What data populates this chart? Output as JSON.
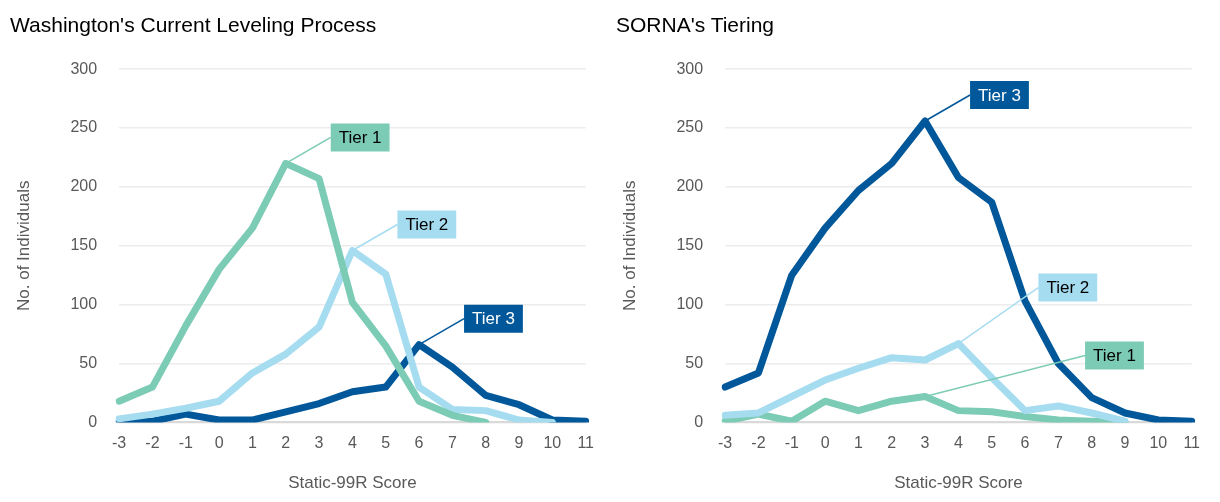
{
  "chart_data": [
    {
      "type": "line",
      "title": "Washington's Current Leveling Process",
      "xlabel": "Static-99R Score",
      "ylabel": "No. of Individuals",
      "categories": [
        "-3",
        "-2",
        "-1",
        "0",
        "1",
        "2",
        "3",
        "4",
        "5",
        "6",
        "7",
        "8",
        "9",
        "10",
        "11"
      ],
      "series": [
        {
          "name": "Tier 1",
          "color": "#7ccbb5",
          "values": [
            18,
            30,
            82,
            130,
            165,
            220,
            207,
            102,
            65,
            18,
            6,
            0,
            null,
            null,
            null
          ]
        },
        {
          "name": "Tier 2",
          "color": "#a6dcf0",
          "values": [
            3,
            7,
            12,
            18,
            42,
            58,
            81,
            146,
            126,
            30,
            11,
            10,
            2,
            0,
            null
          ]
        },
        {
          "name": "Tier 3",
          "color": "#00579a",
          "values": [
            1,
            1,
            7,
            2,
            2,
            9,
            16,
            26,
            30,
            66,
            47,
            23,
            15,
            2,
            1
          ]
        }
      ],
      "ylim": [
        0,
        300
      ],
      "yticks": [
        0,
        50,
        100,
        150,
        200,
        250,
        300
      ],
      "grid": "y",
      "legend": "top right",
      "marker": "none",
      "line_style": "solid"
    },
    {
      "type": "line",
      "title": "SORNA's Tiering",
      "xlabel": "Static-99R Score",
      "ylabel": "No. of Individuals",
      "categories": [
        "-3",
        "-2",
        "-1",
        "0",
        "1",
        "2",
        "3",
        "4",
        "5",
        "6",
        "7",
        "8",
        "9",
        "10",
        "11"
      ],
      "series": [
        {
          "name": "Tier 3",
          "color": "#00579a",
          "values": [
            30,
            42,
            125,
            165,
            197,
            220,
            256,
            208,
            187,
            103,
            50,
            21,
            8,
            2,
            1
          ]
        },
        {
          "name": "Tier 2",
          "color": "#a6dcf0",
          "values": [
            6,
            8,
            22,
            36,
            46,
            55,
            53,
            67,
            38,
            10,
            14,
            8,
            1,
            null,
            null
          ]
        },
        {
          "name": "Tier 1",
          "color": "#7ccbb5",
          "values": [
            1,
            7,
            1,
            18,
            10,
            18,
            22,
            10,
            9,
            5,
            2,
            1,
            0,
            null,
            null
          ]
        }
      ],
      "ylim": [
        0,
        300
      ],
      "yticks": [
        0,
        50,
        100,
        150,
        200,
        250,
        300
      ],
      "grid": "y",
      "legend": "top right",
      "marker": "none",
      "line_style": "solid"
    }
  ]
}
